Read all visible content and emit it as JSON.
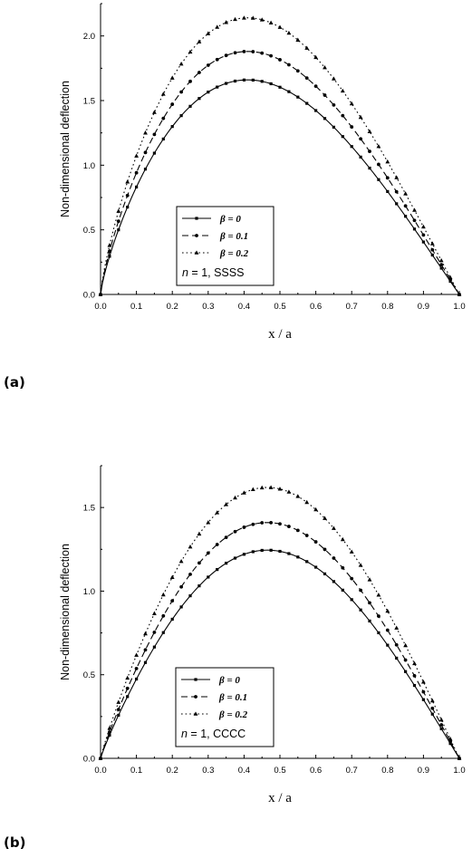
{
  "chart_data": [
    {
      "type": "line",
      "panel_label": "(a)",
      "xlabel": "x / a",
      "ylabel": "Non-dimensional deflection",
      "xlim": [
        0,
        1
      ],
      "ylim": [
        0,
        2.25
      ],
      "x_ticks": [
        "0.0",
        "0.1",
        "0.2",
        "0.3",
        "0.4",
        "0.5",
        "0.6",
        "0.7",
        "0.8",
        "0.9",
        "1.0"
      ],
      "y_ticks": [
        "0.0",
        "0.5",
        "1.0",
        "1.5",
        "2.0"
      ],
      "legend_position": "lower-center",
      "legend_note": {
        "var": "n",
        "rest": " = 1, SSSS"
      },
      "series": [
        {
          "name": "β = 0",
          "peak_x": 0.41,
          "peak_y": 1.66,
          "line": "solid",
          "marker": "square"
        },
        {
          "name": "β = 0.1",
          "peak_x": 0.41,
          "peak_y": 1.88,
          "line": "dashed",
          "marker": "circle"
        },
        {
          "name": "β = 0.2",
          "peak_x": 0.41,
          "peak_y": 2.14,
          "line": "dotted",
          "marker": "triangle"
        }
      ]
    },
    {
      "type": "line",
      "panel_label": "(b)",
      "xlabel": "x / a",
      "ylabel": "Non-dimensional deflection",
      "xlim": [
        0,
        1
      ],
      "ylim": [
        0,
        1.75
      ],
      "x_ticks": [
        "0.0",
        "0.1",
        "0.2",
        "0.3",
        "0.4",
        "0.5",
        "0.6",
        "0.7",
        "0.8",
        "0.9",
        "1.0"
      ],
      "y_ticks": [
        "0.0",
        "0.5",
        "1.0",
        "1.5"
      ],
      "legend_position": "lower-center",
      "legend_note": {
        "var": "n",
        "rest": " = 1, CCCC"
      },
      "series": [
        {
          "name": "β = 0",
          "peak_x": 0.465,
          "peak_y": 1.245,
          "line": "solid",
          "marker": "square"
        },
        {
          "name": "β = 0.1",
          "peak_x": 0.465,
          "peak_y": 1.41,
          "line": "dashed",
          "marker": "circle"
        },
        {
          "name": "β = 0.2",
          "peak_x": 0.465,
          "peak_y": 1.62,
          "line": "dotted",
          "marker": "triangle"
        }
      ]
    }
  ]
}
